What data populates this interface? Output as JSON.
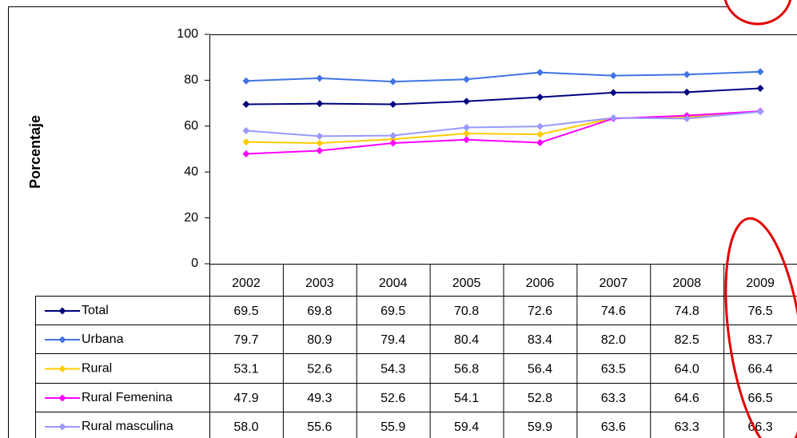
{
  "chart_data": {
    "type": "line",
    "y_label": "Porcentaje",
    "categories": [
      "2002",
      "2003",
      "2004",
      "2005",
      "2006",
      "2007",
      "2008",
      "2009"
    ],
    "ylim": [
      0,
      100
    ],
    "yticks": [
      0,
      20,
      40,
      60,
      80,
      100
    ],
    "series": [
      {
        "name": "Total",
        "color": "#000080",
        "values": [
          69.5,
          69.8,
          69.5,
          70.8,
          72.6,
          74.6,
          74.8,
          76.5
        ],
        "value_labels": [
          "69.5",
          "69.8",
          "69.5",
          "70.8",
          "72.6",
          "74.6",
          "74.8",
          "76.5"
        ]
      },
      {
        "name": "Urbana",
        "color": "#3f73e8",
        "values": [
          79.7,
          80.9,
          79.4,
          80.4,
          83.4,
          82,
          82.5,
          83.7
        ],
        "value_labels": [
          "79.7",
          "80.9",
          "79.4",
          "80.4",
          "83.4",
          "82.0",
          "82.5",
          "83.7"
        ]
      },
      {
        "name": "Rural",
        "color": "#ffcc00",
        "values": [
          53.1,
          52.6,
          54.3,
          56.8,
          56.4,
          63.5,
          64,
          66.4
        ],
        "value_labels": [
          "53.1",
          "52.6",
          "54.3",
          "56.8",
          "56.4",
          "63.5",
          "64.0",
          "66.4"
        ]
      },
      {
        "name": "Rural Femenina",
        "color": "#ff00ff",
        "values": [
          47.9,
          49.3,
          52.6,
          54.1,
          52.8,
          63.3,
          64.6,
          66.5
        ],
        "value_labels": [
          "47.9",
          "49.3",
          "52.6",
          "54.1",
          "52.8",
          "63.3",
          "64.6",
          "66.5"
        ]
      },
      {
        "name": "Rural masculina",
        "color": "#9999ff",
        "values": [
          58,
          55.6,
          55.9,
          59.4,
          59.9,
          63.6,
          63.3,
          66.3
        ],
        "value_labels": [
          "58.0",
          "55.6",
          "55.9",
          "59.4",
          "59.9",
          "63.6",
          "63.3",
          "66.3"
        ]
      }
    ]
  }
}
